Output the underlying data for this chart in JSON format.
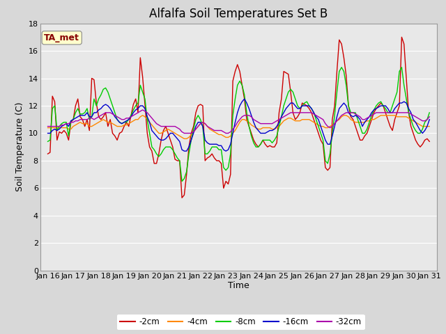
{
  "title": "Alfalfa Soil Temperatures Set B",
  "xlabel": "Time",
  "ylabel": "Soil Temperature (C)",
  "ylim": [
    0,
    18
  ],
  "yticks": [
    0,
    2,
    4,
    6,
    8,
    10,
    12,
    14,
    16,
    18
  ],
  "x_labels": [
    "Jan 16",
    "Jan 17",
    "Jan 18",
    "Jan 19",
    "Jan 20",
    "Jan 21",
    "Jan 22",
    "Jan 23",
    "Jan 24",
    "Jan 25",
    "Jan 26",
    "Jan 27",
    "Jan 28",
    "Jan 29",
    "Jan 30",
    "Jan 31"
  ],
  "annotation_box": "TA_met",
  "annotation_box_facecolor": "#ffffcc",
  "annotation_text_color": "#880000",
  "colors": {
    "-2cm": "#cc0000",
    "-4cm": "#ff8800",
    "-8cm": "#00cc00",
    "-16cm": "#0000cc",
    "-32cm": "#aa00aa"
  },
  "background_color": "#d8d8d8",
  "plot_bg_color": "#e8e8e8",
  "grid_color": "#ffffff",
  "legend_bg": "#ffffff",
  "title_fontsize": 12,
  "axis_label_fontsize": 9,
  "tick_fontsize": 8,
  "series": {
    "-2cm": [
      8.5,
      8.6,
      12.7,
      12.3,
      9.5,
      10.1,
      10.0,
      10.2,
      10.0,
      9.5,
      10.8,
      11.0,
      12.0,
      12.5,
      11.2,
      11.0,
      10.5,
      11.0,
      10.2,
      14.0,
      13.9,
      12.2,
      11.2,
      11.0,
      11.2,
      11.5,
      10.5,
      11.0,
      10.0,
      9.8,
      9.5,
      10.0,
      10.1,
      10.5,
      10.8,
      10.5,
      11.3,
      12.1,
      12.5,
      11.5,
      15.5,
      14.1,
      12.1,
      10.0,
      9.0,
      8.7,
      7.8,
      7.8,
      8.5,
      9.5,
      10.2,
      10.5,
      10.0,
      9.5,
      9.0,
      8.1,
      8.0,
      8.0,
      5.3,
      5.5,
      7.0,
      9.0,
      10.0,
      10.5,
      11.5,
      12.0,
      12.1,
      12.0,
      8.0,
      8.2,
      8.3,
      8.5,
      8.2,
      8.0,
      8.0,
      7.8,
      6.0,
      6.5,
      6.3,
      7.0,
      13.8,
      14.5,
      15.0,
      14.5,
      13.5,
      12.5,
      11.0,
      10.5,
      10.0,
      9.5,
      9.2,
      9.0,
      9.2,
      9.5,
      9.2,
      9.0,
      9.1,
      9.0,
      9.0,
      9.3,
      11.5,
      12.5,
      14.5,
      14.4,
      14.3,
      13.0,
      11.5,
      11.0,
      11.2,
      11.5,
      12.2,
      12.1,
      12.0,
      11.8,
      11.5,
      11.0,
      10.5,
      10.0,
      9.5,
      9.2,
      7.5,
      7.3,
      7.5,
      11.0,
      12.0,
      14.5,
      16.8,
      16.5,
      15.5,
      14.2,
      12.0,
      11.2,
      11.0,
      10.5,
      10.0,
      9.5,
      9.5,
      9.8,
      10.0,
      10.5,
      11.0,
      11.5,
      11.8,
      12.0,
      12.2,
      12.0,
      11.5,
      11.0,
      10.5,
      10.2,
      11.0,
      11.5,
      12.0,
      17.0,
      16.5,
      14.0,
      11.5,
      10.5,
      10.0,
      9.5,
      9.2,
      9.0,
      9.2,
      9.5,
      9.6,
      9.4
    ],
    "-4cm": [
      10.4,
      10.4,
      10.4,
      10.4,
      10.4,
      10.4,
      10.4,
      10.4,
      10.4,
      10.3,
      10.3,
      10.5,
      10.6,
      10.7,
      10.8,
      10.7,
      10.7,
      10.7,
      10.5,
      10.5,
      10.6,
      10.7,
      10.8,
      10.9,
      11.0,
      10.9,
      10.8,
      10.8,
      10.7,
      10.6,
      10.5,
      10.5,
      10.5,
      10.6,
      10.6,
      10.7,
      10.8,
      10.9,
      11.0,
      11.0,
      11.2,
      11.3,
      11.2,
      11.0,
      10.8,
      10.6,
      10.4,
      10.2,
      10.0,
      10.0,
      10.1,
      10.2,
      10.3,
      10.2,
      10.1,
      10.0,
      9.9,
      9.8,
      9.7,
      9.6,
      9.6,
      9.7,
      9.9,
      10.1,
      10.3,
      10.5,
      10.7,
      10.8,
      10.7,
      10.5,
      10.3,
      10.2,
      10.1,
      10.0,
      9.9,
      9.9,
      9.8,
      9.7,
      9.7,
      9.8,
      10.0,
      10.2,
      10.5,
      10.8,
      11.0,
      11.0,
      10.9,
      10.8,
      10.6,
      10.5,
      10.4,
      10.3,
      10.3,
      10.4,
      10.4,
      10.4,
      10.4,
      10.3,
      10.3,
      10.4,
      10.5,
      10.7,
      10.9,
      11.0,
      11.1,
      11.1,
      11.0,
      10.9,
      10.9,
      10.9,
      11.0,
      11.0,
      11.0,
      11.0,
      10.9,
      10.8,
      10.7,
      10.6,
      10.5,
      10.5,
      10.4,
      10.4,
      10.5,
      10.6,
      10.7,
      10.9,
      11.0,
      11.2,
      11.3,
      11.3,
      11.2,
      11.0,
      10.9,
      10.8,
      10.8,
      10.8,
      10.8,
      10.8,
      10.9,
      10.9,
      11.0,
      11.0,
      11.1,
      11.2,
      11.3,
      11.3,
      11.3,
      11.3,
      11.3,
      11.3,
      11.3,
      11.2,
      11.2,
      11.2,
      11.2,
      11.2,
      11.1,
      11.0,
      10.9,
      10.8,
      10.7,
      10.6,
      10.5,
      10.5,
      10.5,
      10.5
    ],
    "-8cm": [
      9.4,
      9.5,
      11.8,
      12.0,
      10.2,
      10.5,
      10.7,
      10.8,
      10.8,
      9.8,
      10.9,
      11.0,
      11.5,
      11.8,
      11.4,
      11.4,
      11.5,
      11.8,
      11.0,
      11.2,
      12.5,
      12.0,
      12.5,
      12.8,
      13.2,
      13.3,
      13.0,
      12.5,
      12.0,
      11.5,
      11.0,
      10.8,
      10.7,
      10.8,
      10.8,
      11.0,
      11.3,
      11.7,
      12.0,
      12.2,
      13.5,
      13.0,
      12.5,
      11.0,
      10.0,
      9.0,
      8.8,
      8.5,
      8.3,
      8.5,
      8.8,
      9.0,
      9.0,
      9.0,
      8.8,
      8.5,
      8.2,
      8.0,
      6.5,
      6.7,
      7.2,
      8.5,
      9.5,
      10.3,
      11.0,
      11.3,
      11.0,
      10.5,
      8.5,
      8.5,
      8.7,
      9.0,
      9.0,
      9.0,
      8.8,
      8.8,
      7.5,
      7.3,
      7.5,
      8.5,
      11.3,
      12.5,
      13.5,
      13.8,
      13.5,
      12.8,
      11.5,
      10.5,
      9.8,
      9.3,
      9.0,
      9.0,
      9.2,
      9.5,
      9.5,
      9.5,
      9.5,
      9.3,
      9.5,
      9.8,
      10.5,
      11.2,
      12.0,
      12.5,
      13.0,
      13.2,
      13.0,
      12.5,
      12.0,
      11.8,
      12.0,
      12.2,
      12.3,
      12.0,
      11.8,
      11.5,
      11.0,
      10.5,
      10.0,
      9.5,
      8.0,
      7.8,
      8.5,
      10.0,
      11.3,
      13.0,
      14.5,
      14.8,
      14.5,
      13.5,
      12.0,
      11.5,
      11.5,
      11.5,
      11.0,
      10.5,
      10.0,
      10.0,
      10.3,
      10.8,
      11.3,
      11.7,
      12.0,
      12.2,
      12.3,
      12.0,
      11.8,
      11.5,
      11.5,
      12.0,
      12.5,
      13.0,
      14.5,
      14.8,
      13.5,
      12.5,
      11.5,
      11.0,
      10.5,
      10.2,
      10.0,
      10.0,
      10.3,
      10.8,
      11.0,
      11.5
    ],
    "-16cm": [
      10.0,
      10.0,
      10.2,
      10.3,
      10.2,
      10.3,
      10.5,
      10.6,
      10.7,
      10.5,
      10.9,
      11.0,
      11.1,
      11.2,
      11.3,
      11.3,
      11.3,
      11.5,
      11.2,
      11.2,
      11.5,
      11.5,
      11.7,
      11.8,
      12.0,
      12.1,
      12.0,
      11.8,
      11.5,
      11.2,
      11.0,
      10.8,
      10.7,
      10.8,
      10.9,
      11.0,
      11.2,
      11.5,
      11.7,
      11.8,
      12.0,
      12.0,
      11.8,
      11.2,
      10.8,
      10.2,
      10.0,
      9.8,
      9.6,
      9.5,
      9.5,
      9.6,
      9.8,
      10.0,
      10.0,
      9.8,
      9.6,
      9.4,
      8.8,
      8.7,
      8.7,
      9.0,
      9.5,
      10.0,
      10.5,
      10.8,
      10.8,
      10.5,
      9.5,
      9.3,
      9.2,
      9.2,
      9.2,
      9.2,
      9.1,
      9.1,
      8.8,
      8.7,
      8.8,
      9.2,
      10.0,
      10.8,
      11.5,
      12.0,
      12.3,
      12.5,
      12.2,
      11.8,
      11.3,
      10.8,
      10.4,
      10.2,
      10.0,
      10.0,
      10.0,
      10.1,
      10.2,
      10.2,
      10.3,
      10.5,
      10.8,
      11.2,
      11.5,
      11.8,
      12.0,
      12.2,
      12.2,
      12.0,
      11.8,
      11.8,
      12.0,
      12.0,
      12.0,
      12.0,
      11.8,
      11.5,
      11.2,
      11.0,
      10.5,
      10.0,
      9.5,
      9.2,
      9.2,
      9.8,
      10.5,
      11.2,
      11.8,
      12.0,
      12.2,
      12.0,
      11.5,
      11.3,
      11.2,
      11.3,
      11.2,
      11.0,
      10.5,
      10.8,
      11.0,
      11.2,
      11.5,
      11.7,
      11.8,
      11.9,
      12.0,
      12.0,
      12.0,
      11.8,
      11.5,
      11.5,
      11.8,
      12.0,
      12.2,
      12.2,
      12.3,
      12.2,
      11.8,
      11.5,
      11.0,
      10.8,
      10.5,
      10.2,
      10.0,
      10.2,
      10.5,
      11.0
    ],
    "-32cm": [
      10.5,
      10.5,
      10.5,
      10.5,
      10.5,
      10.5,
      10.6,
      10.6,
      10.7,
      10.7,
      10.8,
      10.8,
      10.9,
      10.9,
      11.0,
      11.0,
      11.0,
      11.0,
      11.1,
      11.1,
      11.0,
      11.1,
      11.2,
      11.3,
      11.4,
      11.5,
      11.5,
      11.5,
      11.4,
      11.3,
      11.2,
      11.1,
      11.0,
      11.0,
      11.1,
      11.1,
      11.2,
      11.3,
      11.4,
      11.5,
      11.6,
      11.7,
      11.6,
      11.5,
      11.3,
      11.1,
      10.9,
      10.7,
      10.6,
      10.5,
      10.5,
      10.5,
      10.5,
      10.5,
      10.5,
      10.5,
      10.4,
      10.3,
      10.1,
      10.0,
      10.0,
      10.0,
      10.0,
      10.1,
      10.3,
      10.5,
      10.7,
      10.8,
      10.7,
      10.5,
      10.4,
      10.3,
      10.2,
      10.2,
      10.2,
      10.2,
      10.1,
      10.0,
      10.0,
      10.1,
      10.3,
      10.5,
      10.8,
      11.0,
      11.2,
      11.3,
      11.3,
      11.3,
      11.2,
      11.0,
      10.9,
      10.8,
      10.7,
      10.7,
      10.7,
      10.7,
      10.7,
      10.7,
      10.8,
      10.9,
      11.0,
      11.1,
      11.2,
      11.3,
      11.4,
      11.5,
      11.5,
      11.5,
      11.5,
      11.5,
      11.5,
      11.5,
      11.5,
      11.5,
      11.5,
      11.4,
      11.3,
      11.2,
      11.1,
      11.0,
      10.7,
      10.5,
      10.4,
      10.5,
      10.7,
      10.9,
      11.1,
      11.3,
      11.4,
      11.5,
      11.5,
      11.5,
      11.5,
      11.4,
      11.3,
      11.2,
      11.0,
      11.0,
      11.1,
      11.2,
      11.3,
      11.4,
      11.5,
      11.5,
      11.5,
      11.5,
      11.5,
      11.5,
      11.5,
      11.5,
      11.5,
      11.5,
      11.5,
      11.5,
      11.5,
      11.5,
      11.5,
      11.4,
      11.3,
      11.2,
      11.1,
      11.0,
      10.9,
      10.9,
      11.0,
      11.2
    ]
  }
}
